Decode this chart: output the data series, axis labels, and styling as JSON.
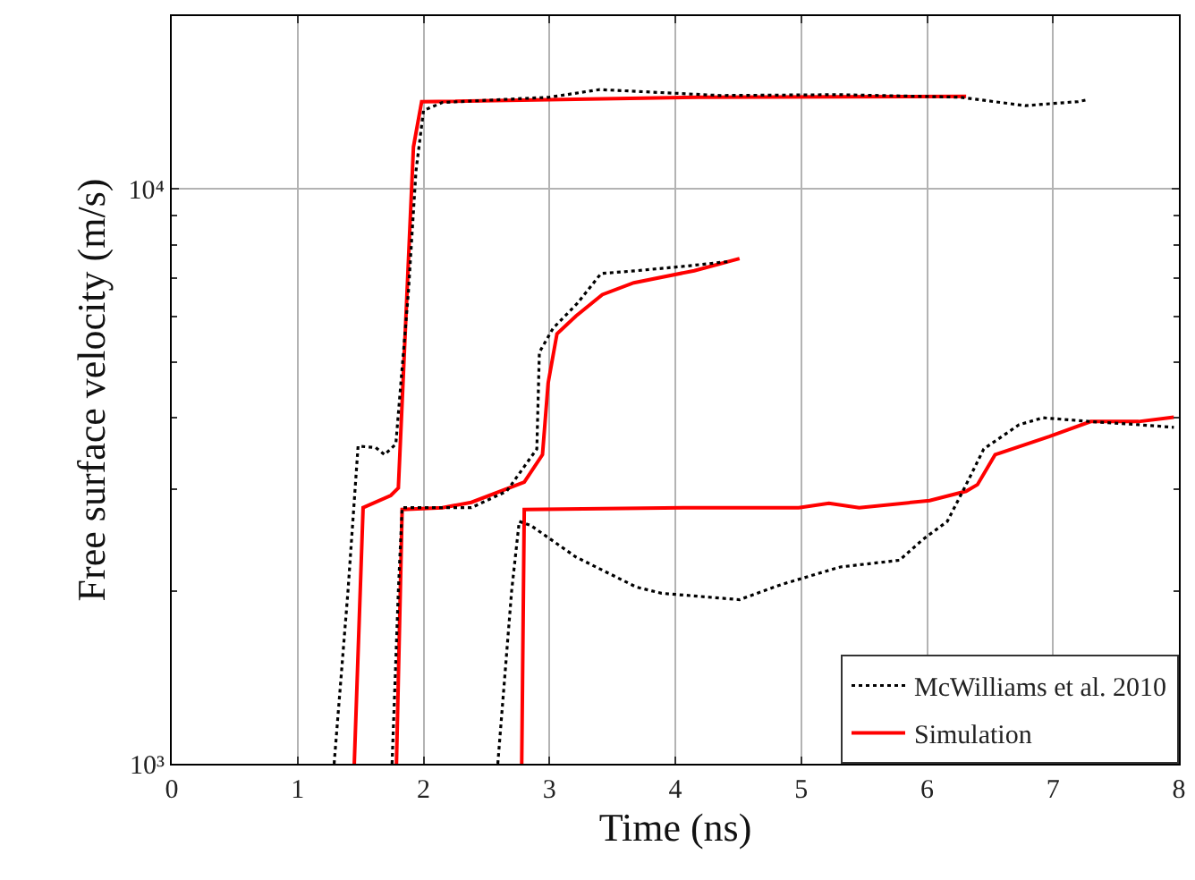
{
  "chart_data": {
    "type": "line",
    "xlabel": "Time (ns)",
    "ylabel": "Free surface velocity (m/s)",
    "log": "y",
    "grid": true,
    "legend": "bottom right",
    "marker": "none",
    "xlim": [
      0,
      8
    ],
    "xticks": [
      0,
      1,
      2,
      3,
      4,
      5,
      6,
      7,
      8
    ],
    "ylim": [
      1000,
      20000
    ],
    "yticks": [
      {
        "value": 1000,
        "label": "10³"
      },
      {
        "value": 2000,
        "label": null
      },
      {
        "value": 3000,
        "label": null
      },
      {
        "value": 4000,
        "label": null
      },
      {
        "value": 5000,
        "label": null
      },
      {
        "value": 6000,
        "label": null
      },
      {
        "value": 7000,
        "label": null
      },
      {
        "value": 8000,
        "label": null
      },
      {
        "value": 9000,
        "label": null
      },
      {
        "value": 10000,
        "label": "10⁴"
      },
      {
        "value": 20000,
        "label": null
      }
    ],
    "series": [
      {
        "name": "McWilliams et al. 2010",
        "color": "#000000",
        "line_style": "dotted",
        "x": [
          1.29,
          1.4,
          1.48,
          1.62,
          1.69,
          1.78,
          1.88,
          1.94,
          2.0,
          2.15,
          3.0,
          3.4,
          4.36,
          5.3,
          6.26,
          6.78,
          7.2,
          7.27
        ],
        "values": [
          1000,
          2000,
          3570,
          3550,
          3450,
          3600,
          6620,
          10750,
          13700,
          14150,
          14450,
          14900,
          14550,
          14600,
          14450,
          13970,
          14200,
          14300
        ]
      },
      {
        "color": "#000000",
        "line_style": "dotted",
        "x": [
          1.75,
          1.8,
          1.83,
          2.38,
          2.66,
          2.9,
          2.92,
          3.03,
          3.22,
          3.41,
          3.69,
          4.1,
          4.42
        ],
        "values": [
          1000,
          2000,
          2790,
          2790,
          2980,
          3530,
          5200,
          5730,
          6320,
          7130,
          7210,
          7350,
          7480
        ]
      },
      {
        "color": "#000000",
        "line_style": "dotted",
        "x": [
          2.59,
          2.7,
          2.76,
          2.85,
          3.21,
          3.69,
          3.89,
          4.51,
          4.84,
          5.31,
          5.78,
          5.97,
          6.16,
          6.31,
          6.45,
          6.73,
          6.92,
          7.3,
          7.68,
          7.96
        ],
        "values": [
          1000,
          2000,
          2640,
          2600,
          2290,
          2030,
          1980,
          1930,
          2050,
          2200,
          2260,
          2460,
          2640,
          3060,
          3530,
          3890,
          4000,
          3940,
          3890,
          3850
        ]
      },
      {
        "name": "Simulation",
        "color": "#ff0000",
        "line_style": "solid",
        "x": [
          1.45,
          1.52,
          1.74,
          1.8,
          1.92,
          1.985,
          4.18,
          6.31
        ],
        "values": [
          1000,
          2790,
          2930,
          3020,
          11840,
          14190,
          14450,
          14500
        ]
      },
      {
        "color": "#ff0000",
        "line_style": "solid",
        "x": [
          1.785,
          1.83,
          2.15,
          2.38,
          2.8,
          2.945,
          2.99,
          3.06,
          3.21,
          3.42,
          3.67,
          4.15,
          4.51
        ],
        "values": [
          1000,
          2770,
          2790,
          2850,
          3090,
          3450,
          4600,
          5600,
          6010,
          6550,
          6870,
          7210,
          7570
        ]
      },
      {
        "color": "#ff0000",
        "line_style": "solid",
        "x": [
          2.78,
          2.8,
          4.18,
          4.98,
          5.22,
          5.46,
          6.02,
          6.31,
          6.4,
          6.54,
          6.97,
          7.3,
          7.68,
          7.96
        ],
        "values": [
          1000,
          2770,
          2790,
          2790,
          2840,
          2790,
          2870,
          2980,
          3060,
          3450,
          3710,
          3940,
          3940,
          4010
        ]
      }
    ]
  }
}
